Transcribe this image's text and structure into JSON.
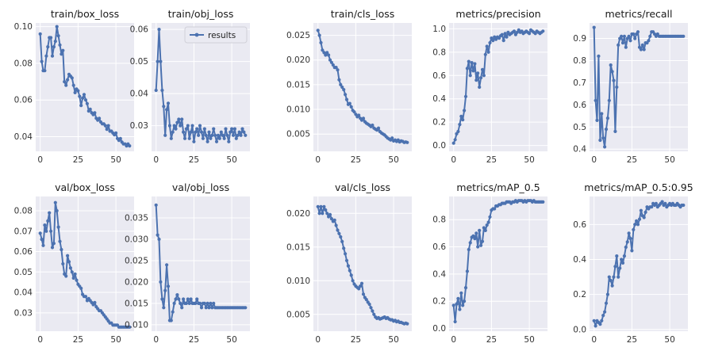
{
  "figure": {
    "series_color": "#4c72b0",
    "plot_bg": "#eaeaf2",
    "grid_color": "#ffffff",
    "legend_label": "results"
  },
  "chart_data": [
    {
      "type": "line",
      "title": "train/box_loss",
      "xlim": [
        -3,
        62
      ],
      "ylim": [
        0.032,
        0.102
      ],
      "xticks": [
        0,
        25,
        50
      ],
      "xtick_labels": [
        "0",
        "25",
        "50"
      ],
      "yticks": [
        0.04,
        0.06,
        0.08,
        0.1
      ],
      "ytick_labels": [
        "0.04",
        "0.06",
        "0.08",
        "0.10"
      ],
      "series": [
        {
          "name": "results",
          "x_start": 0,
          "values": [
            0.096,
            0.081,
            0.076,
            0.076,
            0.084,
            0.089,
            0.094,
            0.094,
            0.084,
            0.089,
            0.092,
            0.1,
            0.095,
            0.09,
            0.085,
            0.087,
            0.07,
            0.068,
            0.071,
            0.074,
            0.073,
            0.072,
            0.068,
            0.064,
            0.066,
            0.065,
            0.062,
            0.057,
            0.061,
            0.063,
            0.06,
            0.058,
            0.054,
            0.055,
            0.053,
            0.052,
            0.053,
            0.05,
            0.049,
            0.05,
            0.048,
            0.047,
            0.047,
            0.046,
            0.044,
            0.046,
            0.043,
            0.043,
            0.042,
            0.041,
            0.042,
            0.039,
            0.038,
            0.039,
            0.037,
            0.036,
            0.036,
            0.035,
            0.036,
            0.035
          ]
        }
      ]
    },
    {
      "type": "line",
      "title": "train/obj_loss",
      "xlim": [
        -3,
        62
      ],
      "ylim": [
        0.022,
        0.062
      ],
      "xticks": [
        0,
        25,
        50
      ],
      "xtick_labels": [
        "0",
        "25",
        "50"
      ],
      "yticks": [
        0.03,
        0.04,
        0.05,
        0.06
      ],
      "ytick_labels": [
        "0.03",
        "0.04",
        "0.05",
        "0.06"
      ],
      "legend": "top-right",
      "series": [
        {
          "name": "results",
          "x_start": 0,
          "values": [
            0.041,
            0.05,
            0.06,
            0.05,
            0.041,
            0.036,
            0.027,
            0.035,
            0.037,
            0.03,
            0.026,
            0.028,
            0.03,
            0.029,
            0.031,
            0.032,
            0.03,
            0.032,
            0.028,
            0.026,
            0.029,
            0.03,
            0.026,
            0.028,
            0.03,
            0.025,
            0.028,
            0.029,
            0.027,
            0.03,
            0.028,
            0.026,
            0.029,
            0.027,
            0.025,
            0.028,
            0.026,
            0.027,
            0.029,
            0.027,
            0.025,
            0.027,
            0.026,
            0.028,
            0.027,
            0.026,
            0.029,
            0.027,
            0.025,
            0.028,
            0.029,
            0.027,
            0.029,
            0.026,
            0.027,
            0.028,
            0.027,
            0.029,
            0.028,
            0.027
          ]
        }
      ]
    },
    {
      "type": "line",
      "title": "train/cls_loss",
      "xlim": [
        -3,
        62
      ],
      "ylim": [
        0.0015,
        0.0275
      ],
      "xticks": [
        0,
        25,
        50
      ],
      "xtick_labels": [
        "0",
        "25",
        "50"
      ],
      "yticks": [
        0.005,
        0.01,
        0.015,
        0.02,
        0.025
      ],
      "ytick_labels": [
        "0.005",
        "0.010",
        "0.015",
        "0.020",
        "0.025"
      ],
      "series": [
        {
          "name": "results",
          "x_start": 0,
          "values": [
            0.026,
            0.025,
            0.0235,
            0.022,
            0.0215,
            0.021,
            0.0215,
            0.021,
            0.02,
            0.0195,
            0.019,
            0.0185,
            0.0185,
            0.018,
            0.016,
            0.015,
            0.0145,
            0.014,
            0.013,
            0.012,
            0.011,
            0.0112,
            0.0105,
            0.0098,
            0.0095,
            0.009,
            0.0085,
            0.0088,
            0.0082,
            0.0078,
            0.0082,
            0.0075,
            0.0072,
            0.007,
            0.0068,
            0.0065,
            0.0068,
            0.0062,
            0.006,
            0.0058,
            0.0062,
            0.0055,
            0.0052,
            0.005,
            0.0048,
            0.0045,
            0.0042,
            0.004,
            0.0038,
            0.0042,
            0.0036,
            0.0038,
            0.0035,
            0.0038,
            0.0034,
            0.0036,
            0.0035,
            0.0033,
            0.0034,
            0.0033
          ]
        }
      ]
    },
    {
      "type": "line",
      "title": "metrics/precision",
      "xlim": [
        -3,
        62
      ],
      "ylim": [
        -0.05,
        1.05
      ],
      "xticks": [
        0,
        25,
        50
      ],
      "xtick_labels": [
        "0",
        "25",
        "50"
      ],
      "yticks": [
        0.0,
        0.2,
        0.4,
        0.6,
        0.8,
        1.0
      ],
      "ytick_labels": [
        "0.0",
        "0.2",
        "0.4",
        "0.6",
        "0.8",
        "1.0"
      ],
      "series": [
        {
          "name": "results",
          "x_start": 0,
          "values": [
            0.02,
            0.05,
            0.1,
            0.12,
            0.18,
            0.25,
            0.22,
            0.3,
            0.42,
            0.66,
            0.72,
            0.6,
            0.71,
            0.64,
            0.7,
            0.56,
            0.62,
            0.5,
            0.58,
            0.65,
            0.6,
            0.78,
            0.85,
            0.8,
            0.88,
            0.92,
            0.9,
            0.93,
            0.91,
            0.93,
            0.92,
            0.94,
            0.95,
            0.9,
            0.96,
            0.93,
            0.97,
            0.95,
            0.96,
            0.97,
            0.98,
            0.95,
            0.97,
            0.99,
            0.97,
            0.98,
            0.96,
            0.97,
            0.98,
            0.97,
            0.96,
            0.99,
            0.98,
            0.97,
            0.96,
            0.98,
            0.97,
            0.96,
            0.97,
            0.98
          ]
        }
      ]
    },
    {
      "type": "line",
      "title": "metrics/recall",
      "xlim": [
        -3,
        62
      ],
      "ylim": [
        0.39,
        0.97
      ],
      "xticks": [
        0,
        25,
        50
      ],
      "xtick_labels": [
        "0",
        "25",
        "50"
      ],
      "yticks": [
        0.4,
        0.5,
        0.6,
        0.7,
        0.8,
        0.9
      ],
      "ytick_labels": [
        "0.4",
        "0.5",
        "0.6",
        "0.7",
        "0.8",
        "0.9"
      ],
      "series": [
        {
          "name": "results",
          "x_start": 0,
          "values": [
            0.95,
            0.62,
            0.53,
            0.82,
            0.44,
            0.56,
            0.45,
            0.41,
            0.49,
            0.54,
            0.62,
            0.78,
            0.75,
            0.71,
            0.48,
            0.68,
            0.87,
            0.9,
            0.91,
            0.88,
            0.91,
            0.86,
            0.9,
            0.91,
            0.89,
            0.92,
            0.92,
            0.9,
            0.92,
            0.93,
            0.86,
            0.85,
            0.87,
            0.85,
            0.88,
            0.88,
            0.89,
            0.91,
            0.93,
            0.93,
            0.92,
            0.91,
            0.92,
            0.91,
            0.91,
            0.91,
            0.91,
            0.91,
            0.91,
            0.91,
            0.91,
            0.91,
            0.91,
            0.91,
            0.91,
            0.91,
            0.91,
            0.91,
            0.91,
            0.91
          ]
        }
      ]
    },
    {
      "type": "line",
      "title": "val/box_loss",
      "xlim": [
        -3,
        62
      ],
      "ylim": [
        0.021,
        0.087
      ],
      "xticks": [
        0,
        25,
        50
      ],
      "xtick_labels": [
        "0",
        "25",
        "50"
      ],
      "yticks": [
        0.03,
        0.04,
        0.05,
        0.06,
        0.07,
        0.08
      ],
      "ytick_labels": [
        "0.03",
        "0.04",
        "0.05",
        "0.06",
        "0.07",
        "0.08"
      ],
      "series": [
        {
          "name": "results",
          "x_start": 0,
          "values": [
            0.069,
            0.066,
            0.063,
            0.073,
            0.07,
            0.075,
            0.079,
            0.07,
            0.062,
            0.064,
            0.084,
            0.08,
            0.072,
            0.065,
            0.061,
            0.054,
            0.049,
            0.048,
            0.058,
            0.055,
            0.052,
            0.05,
            0.047,
            0.049,
            0.046,
            0.044,
            0.043,
            0.042,
            0.039,
            0.038,
            0.038,
            0.036,
            0.037,
            0.036,
            0.035,
            0.034,
            0.035,
            0.033,
            0.032,
            0.031,
            0.031,
            0.03,
            0.029,
            0.028,
            0.027,
            0.026,
            0.025,
            0.025,
            0.024,
            0.024,
            0.024,
            0.024,
            0.023,
            0.023,
            0.023,
            0.023,
            0.023,
            0.023,
            0.023,
            0.023
          ]
        }
      ]
    },
    {
      "type": "line",
      "title": "val/obj_loss",
      "xlim": [
        -3,
        62
      ],
      "ylim": [
        0.0085,
        0.04
      ],
      "xticks": [
        0,
        25,
        50
      ],
      "xtick_labels": [
        "0",
        "25",
        "50"
      ],
      "yticks": [
        0.01,
        0.015,
        0.02,
        0.025,
        0.03,
        0.035
      ],
      "ytick_labels": [
        "0.010",
        "0.015",
        "0.020",
        "0.025",
        "0.030",
        "0.035"
      ],
      "series": [
        {
          "name": "results",
          "x_start": 0,
          "values": [
            0.038,
            0.031,
            0.03,
            0.02,
            0.016,
            0.014,
            0.018,
            0.024,
            0.019,
            0.011,
            0.011,
            0.013,
            0.015,
            0.016,
            0.017,
            0.016,
            0.015,
            0.014,
            0.016,
            0.015,
            0.015,
            0.016,
            0.015,
            0.016,
            0.015,
            0.015,
            0.015,
            0.016,
            0.015,
            0.015,
            0.014,
            0.015,
            0.015,
            0.014,
            0.015,
            0.014,
            0.015,
            0.014,
            0.015,
            0.014,
            0.014,
            0.014,
            0.014,
            0.014,
            0.014,
            0.014,
            0.014,
            0.014,
            0.014,
            0.014,
            0.014,
            0.014,
            0.014,
            0.014,
            0.014,
            0.014,
            0.014,
            0.014,
            0.014,
            0.014
          ]
        }
      ]
    },
    {
      "type": "line",
      "title": "val/cls_loss",
      "xlim": [
        -3,
        62
      ],
      "ylim": [
        0.0025,
        0.0225
      ],
      "xticks": [
        0,
        25,
        50
      ],
      "xtick_labels": [
        "0",
        "25",
        "50"
      ],
      "yticks": [
        0.005,
        0.01,
        0.015,
        0.02
      ],
      "ytick_labels": [
        "0.005",
        "0.010",
        "0.015",
        "0.020"
      ],
      "series": [
        {
          "name": "results",
          "x_start": 0,
          "values": [
            0.021,
            0.02,
            0.021,
            0.02,
            0.021,
            0.0205,
            0.02,
            0.0195,
            0.0198,
            0.0192,
            0.0188,
            0.019,
            0.0182,
            0.0175,
            0.017,
            0.0165,
            0.0158,
            0.0148,
            0.014,
            0.013,
            0.0122,
            0.0115,
            0.0108,
            0.01,
            0.0095,
            0.0092,
            0.009,
            0.0088,
            0.0092,
            0.0096,
            0.008,
            0.0075,
            0.0072,
            0.0068,
            0.0065,
            0.006,
            0.0055,
            0.005,
            0.0046,
            0.0044,
            0.0045,
            0.0043,
            0.0044,
            0.0045,
            0.0046,
            0.0044,
            0.0045,
            0.0043,
            0.0042,
            0.0042,
            0.004,
            0.0041,
            0.0039,
            0.004,
            0.0038,
            0.0038,
            0.0037,
            0.0036,
            0.0037,
            0.0036
          ]
        }
      ]
    },
    {
      "type": "line",
      "title": "metrics/mAP_0.5",
      "xlim": [
        -3,
        62
      ],
      "ylim": [
        -0.02,
        0.97
      ],
      "xticks": [
        0,
        25,
        50
      ],
      "xtick_labels": [
        "0",
        "25",
        "50"
      ],
      "yticks": [
        0.0,
        0.2,
        0.4,
        0.6,
        0.8
      ],
      "ytick_labels": [
        "0.0",
        "0.2",
        "0.4",
        "0.6",
        "0.8"
      ],
      "series": [
        {
          "name": "results",
          "x_start": 0,
          "values": [
            0.17,
            0.05,
            0.18,
            0.22,
            0.14,
            0.26,
            0.17,
            0.2,
            0.3,
            0.42,
            0.58,
            0.63,
            0.67,
            0.68,
            0.66,
            0.7,
            0.6,
            0.72,
            0.61,
            0.64,
            0.74,
            0.72,
            0.76,
            0.78,
            0.82,
            0.87,
            0.88,
            0.88,
            0.9,
            0.9,
            0.91,
            0.91,
            0.92,
            0.92,
            0.92,
            0.93,
            0.93,
            0.93,
            0.92,
            0.93,
            0.93,
            0.94,
            0.93,
            0.94,
            0.94,
            0.94,
            0.93,
            0.94,
            0.93,
            0.94,
            0.94,
            0.94,
            0.93,
            0.94,
            0.93,
            0.93,
            0.93,
            0.93,
            0.93,
            0.93
          ]
        }
      ]
    },
    {
      "type": "line",
      "title": "metrics/mAP_0.5:0.95",
      "xlim": [
        -3,
        62
      ],
      "ylim": [
        -0.01,
        0.76
      ],
      "xticks": [
        0,
        25,
        50
      ],
      "xtick_labels": [
        "0",
        "25",
        "50"
      ],
      "yticks": [
        0.0,
        0.2,
        0.4,
        0.6
      ],
      "ytick_labels": [
        "0.0",
        "0.2",
        "0.4",
        "0.6"
      ],
      "series": [
        {
          "name": "results",
          "x_start": 0,
          "values": [
            0.05,
            0.02,
            0.05,
            0.04,
            0.03,
            0.05,
            0.08,
            0.1,
            0.15,
            0.2,
            0.3,
            0.28,
            0.25,
            0.3,
            0.36,
            0.42,
            0.3,
            0.35,
            0.4,
            0.38,
            0.42,
            0.47,
            0.5,
            0.55,
            0.52,
            0.45,
            0.57,
            0.6,
            0.62,
            0.6,
            0.63,
            0.68,
            0.65,
            0.64,
            0.67,
            0.7,
            0.69,
            0.7,
            0.7,
            0.72,
            0.71,
            0.72,
            0.7,
            0.71,
            0.72,
            0.73,
            0.71,
            0.72,
            0.7,
            0.71,
            0.72,
            0.71,
            0.72,
            0.71,
            0.71,
            0.72,
            0.71,
            0.7,
            0.71,
            0.71
          ]
        }
      ]
    }
  ]
}
